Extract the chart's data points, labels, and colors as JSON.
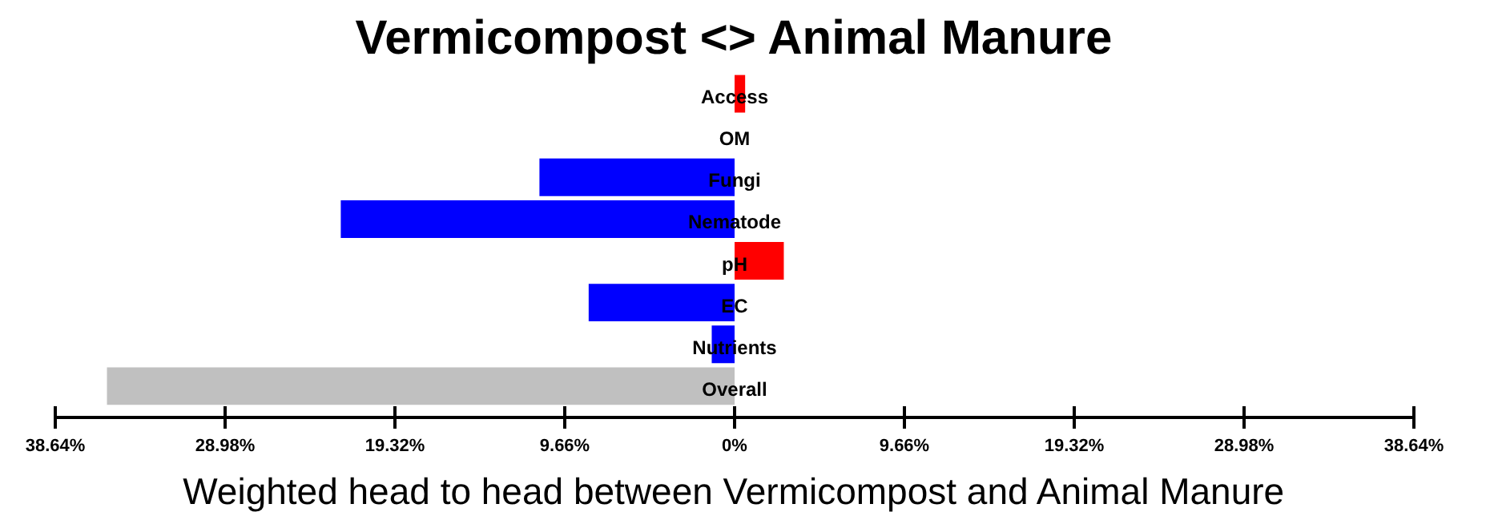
{
  "chart_data": {
    "type": "bar",
    "orientation": "horizontal",
    "title": "Vermicompost <> Animal Manure",
    "xlabel": "Weighted head to head between Vermicompost and Animal Manure",
    "categories": [
      "Access",
      "OM",
      "Fungi",
      "Nematode",
      "pH",
      "EC",
      "Nutrients",
      "Overall"
    ],
    "values": [
      0.6,
      0,
      -11.1,
      -22.4,
      2.8,
      -8.3,
      -1.3,
      -35.7
    ],
    "colors": [
      "#ff0000",
      "#0000ff",
      "#0000ff",
      "#0000ff",
      "#ff0000",
      "#0000ff",
      "#0000ff",
      "#c0c0c0"
    ],
    "xlim": [
      -38.64,
      38.64
    ],
    "xticks": [
      {
        "value": -38.64,
        "label": "38.64%"
      },
      {
        "value": -28.98,
        "label": "28.98%"
      },
      {
        "value": -19.32,
        "label": "19.32%"
      },
      {
        "value": -9.66,
        "label": "9.66%"
      },
      {
        "value": 0,
        "label": "0%"
      },
      {
        "value": 9.66,
        "label": "9.66%"
      },
      {
        "value": 19.32,
        "label": "19.32%"
      },
      {
        "value": 28.98,
        "label": "28.98%"
      },
      {
        "value": 38.64,
        "label": "38.64%"
      }
    ],
    "grid": false
  }
}
